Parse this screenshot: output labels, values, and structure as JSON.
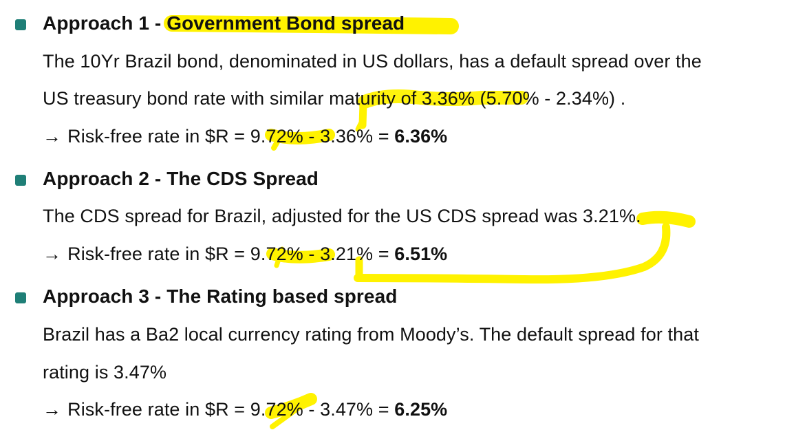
{
  "approach1": {
    "heading_prefix": "Approach 1 - ",
    "heading_highlight": "Government Bond spread",
    "line1": "The 10Yr Brazil bond, denominated in US dollars, has a default spread over the",
    "line2_prefix": "US treasury bond rate with similar maturity of ",
    "line2_rate": "3.36%",
    "line2_suffix": " (5.70% - 2.34%) .",
    "result_prefix": "Risk-free rate in $R = 9.72% - 3.36% = ",
    "result_value": "6.36%"
  },
  "approach2": {
    "heading": "Approach 2 - The CDS Spread",
    "line1_prefix": "The CDS spread for Brazil, adjusted for the US CDS spread was ",
    "line1_rate": "3.21%",
    "line1_suffix": ".",
    "result_prefix": "Risk-free rate in $R = 9.72% - 3.21% = ",
    "result_value": "6.51%"
  },
  "approach3": {
    "heading": "Approach 3 - The Rating based spread",
    "line1": "Brazil has a Ba2 local currency rating from Moody’s. The default spread for that",
    "line2": "rating is 3.47%",
    "result_prefix": "Risk-free rate in $R = 9.72% - 3.47% = ",
    "result_value": "6.25%"
  },
  "arrow_glyph": "→",
  "colors": {
    "bullet": "#1f7f77",
    "highlight": "#fff200",
    "text": "#111111"
  }
}
